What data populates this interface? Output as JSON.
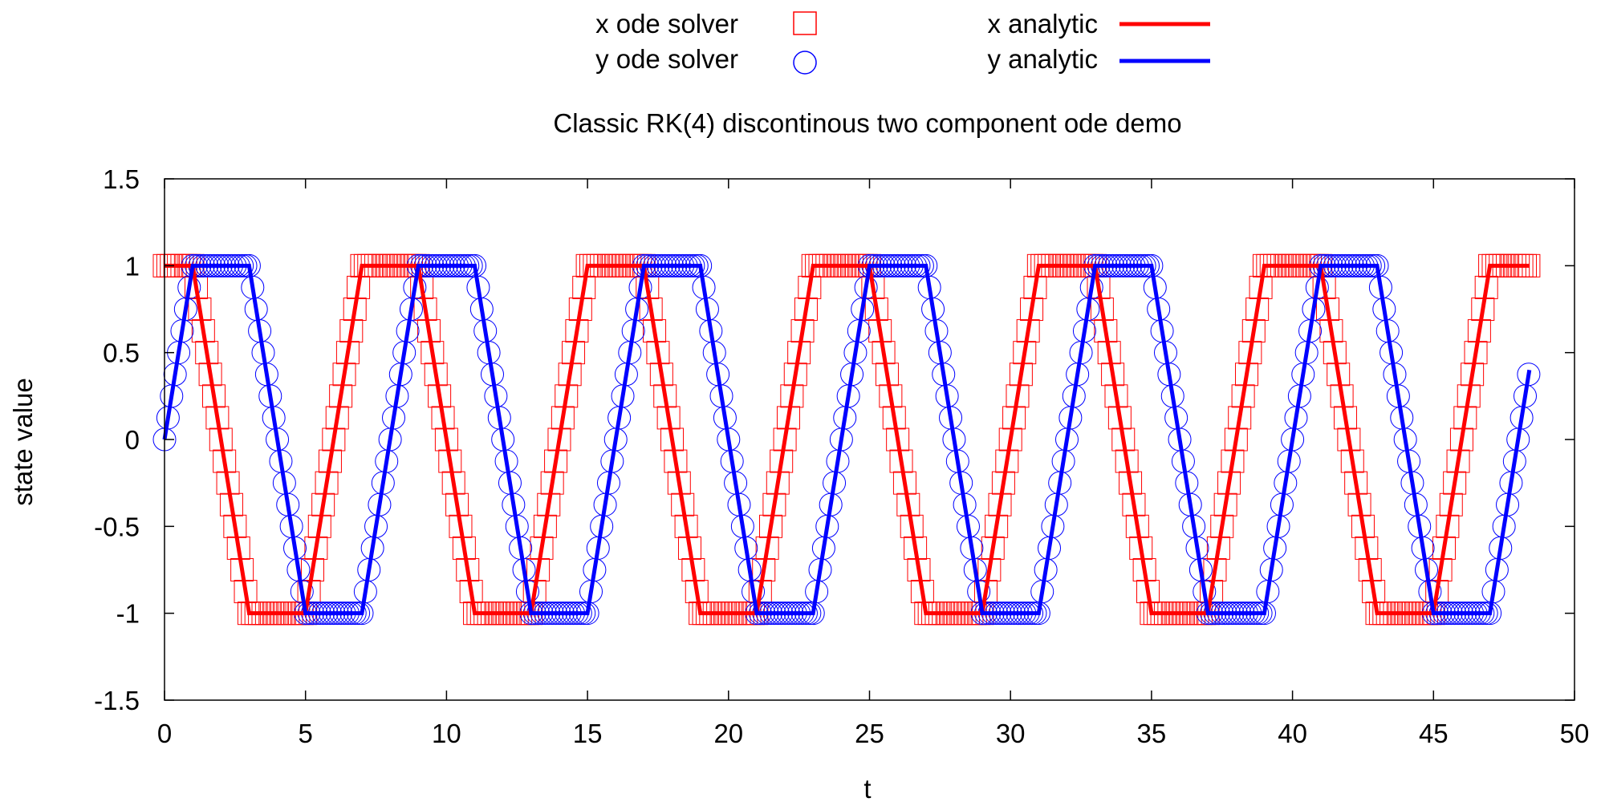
{
  "chart_data": {
    "type": "line",
    "title": "Classic RK(4) discontinous two component ode demo",
    "xlabel": "t",
    "ylabel": "state value",
    "xlim": [
      0,
      50
    ],
    "ylim": [
      -1.5,
      1.5
    ],
    "xticks": [
      0,
      5,
      10,
      15,
      20,
      25,
      30,
      35,
      40,
      45,
      50
    ],
    "xtick_labels": [
      "0",
      "5",
      "10",
      "15",
      "20",
      "25",
      "30",
      "35",
      "40",
      "45",
      "50"
    ],
    "yticks": [
      -1.5,
      -1,
      -0.5,
      0,
      0.5,
      1,
      1.5
    ],
    "ytick_labels": [
      "-1.5",
      "-1",
      "-0.5",
      "0",
      "0.5",
      "1",
      "1.5"
    ],
    "grid": false,
    "legend_position": "top",
    "solver_step": 0.125,
    "series": [
      {
        "name": "x ode solver",
        "style": "markers",
        "marker": "square",
        "color": "#ff0000",
        "x": [
          0,
          1,
          3,
          5,
          7,
          9,
          11,
          13,
          15,
          17,
          19,
          21,
          23,
          25,
          27,
          29,
          31,
          33,
          35,
          37,
          39,
          41,
          43,
          45,
          47,
          48.4
        ],
        "y": [
          1,
          1,
          -1,
          -1,
          1,
          1,
          -1,
          -1,
          1,
          1,
          -1,
          -1,
          1,
          1,
          -1,
          -1,
          1,
          1,
          -1,
          -1,
          1,
          1,
          -1,
          -1,
          1,
          1
        ]
      },
      {
        "name": "y ode solver",
        "style": "markers",
        "marker": "circle",
        "color": "#0000ff",
        "x": [
          0,
          1,
          3,
          5,
          7,
          9,
          11,
          13,
          15,
          17,
          19,
          21,
          23,
          25,
          27,
          29,
          31,
          33,
          35,
          37,
          39,
          41,
          43,
          45,
          47,
          48.4
        ],
        "y": [
          0,
          1,
          1,
          -1,
          -1,
          1,
          1,
          -1,
          -1,
          1,
          1,
          -1,
          -1,
          1,
          1,
          -1,
          -1,
          1,
          1,
          -1,
          -1,
          1,
          1,
          -1,
          -1,
          0.4
        ]
      },
      {
        "name": "x analytic",
        "style": "line",
        "color": "#ff0000",
        "x": [
          0,
          1,
          3,
          5,
          7,
          9,
          11,
          13,
          15,
          17,
          19,
          21,
          23,
          25,
          27,
          29,
          31,
          33,
          35,
          37,
          39,
          41,
          43,
          45,
          47,
          48.4
        ],
        "y": [
          1,
          1,
          -1,
          -1,
          1,
          1,
          -1,
          -1,
          1,
          1,
          -1,
          -1,
          1,
          1,
          -1,
          -1,
          1,
          1,
          -1,
          -1,
          1,
          1,
          -1,
          -1,
          1,
          1
        ]
      },
      {
        "name": "y analytic",
        "style": "line",
        "color": "#0000ff",
        "x": [
          0,
          1,
          3,
          5,
          7,
          9,
          11,
          13,
          15,
          17,
          19,
          21,
          23,
          25,
          27,
          29,
          31,
          33,
          35,
          37,
          39,
          41,
          43,
          45,
          47,
          48.4
        ],
        "y": [
          0,
          1,
          1,
          -1,
          -1,
          1,
          1,
          -1,
          -1,
          1,
          1,
          -1,
          -1,
          1,
          1,
          -1,
          -1,
          1,
          1,
          -1,
          -1,
          1,
          1,
          -1,
          -1,
          0.4
        ]
      }
    ]
  }
}
